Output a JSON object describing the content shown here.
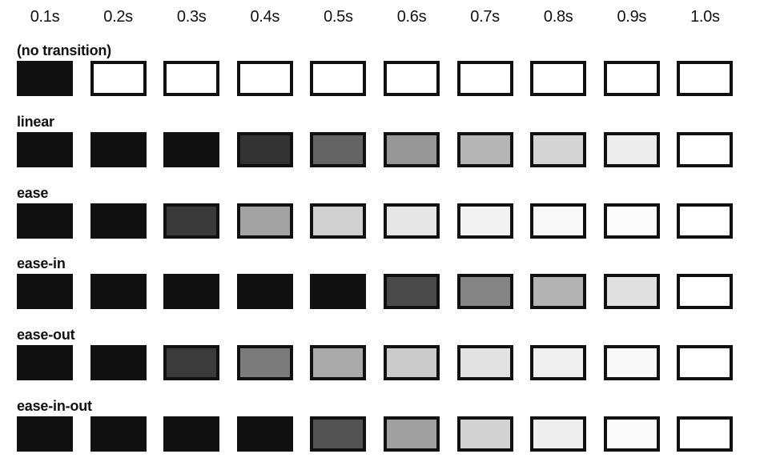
{
  "time_labels": [
    "0.1s",
    "0.2s",
    "0.3s",
    "0.4s",
    "0.5s",
    "0.6s",
    "0.7s",
    "0.8s",
    "0.9s",
    "1.0s"
  ],
  "box_border_color": "#111111",
  "rows": [
    {
      "label": "(no transition)",
      "fills": [
        "#111111",
        "#ffffff",
        "#ffffff",
        "#ffffff",
        "#ffffff",
        "#ffffff",
        "#ffffff",
        "#ffffff",
        "#ffffff",
        "#ffffff"
      ]
    },
    {
      "label": "linear",
      "fills": [
        "#111111",
        "#111111",
        "#111111",
        "#333333",
        "#646464",
        "#969696",
        "#b5b5b5",
        "#d4d4d4",
        "#ececec",
        "#ffffff"
      ]
    },
    {
      "label": "ease",
      "fills": [
        "#111111",
        "#111111",
        "#3a3a3a",
        "#a3a3a3",
        "#d0d0d0",
        "#e6e6e6",
        "#f2f2f2",
        "#f8f8f8",
        "#fcfcfc",
        "#ffffff"
      ]
    },
    {
      "label": "ease-in",
      "fills": [
        "#111111",
        "#111111",
        "#111111",
        "#111111",
        "#111111",
        "#4a4a4a",
        "#858585",
        "#b3b3b3",
        "#e0e0e0",
        "#ffffff"
      ]
    },
    {
      "label": "ease-out",
      "fills": [
        "#111111",
        "#111111",
        "#3b3b3b",
        "#7b7b7b",
        "#aaaaaa",
        "#cbcbcb",
        "#e2e2e2",
        "#f0f0f0",
        "#f9f9f9",
        "#ffffff"
      ]
    },
    {
      "label": "ease-in-out",
      "fills": [
        "#111111",
        "#111111",
        "#111111",
        "#111111",
        "#535353",
        "#a0a0a0",
        "#d3d3d3",
        "#eeeeee",
        "#fbfbfb",
        "#ffffff"
      ]
    }
  ]
}
